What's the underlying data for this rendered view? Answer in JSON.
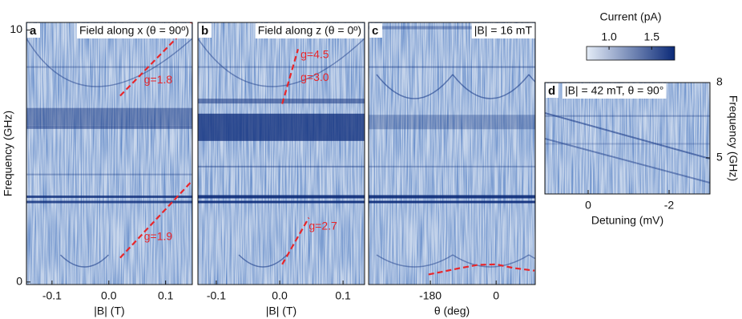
{
  "colorbar": {
    "title": "Current (pA)",
    "lim": [
      0.736,
      1.77
    ],
    "ticks": [
      {
        "value": 1.0,
        "label": "1.0"
      },
      1.5
    ],
    "colors": [
      "#e4ecf7",
      "#0b2a78"
    ]
  },
  "chart_data": [
    {
      "type": "heatmap",
      "panel": "a",
      "title": "Field along x (θ = 90º)",
      "xlabel": "|B| (T)",
      "ylabel": "Frequency (GHz)",
      "xlim": [
        -0.145,
        0.147
      ],
      "ylim": [
        -0.1,
        10.3
      ],
      "xticks": [
        -0.1,
        {
          "value": 0,
          "label": "0.0"
        },
        0.1
      ],
      "yticks": [
        0,
        10
      ],
      "fits": [
        {
          "color": "#e8262a",
          "x": [
            0.02,
            0.146
          ],
          "y": [
            7.39,
            10.3
          ]
        },
        {
          "color": "#e8262a",
          "x": [
            0.02,
            0.144
          ],
          "y": [
            0.96,
            3.95
          ]
        }
      ],
      "annotations": [
        {
          "text": "g=1.8",
          "x": 0.062,
          "y": 8.0
        },
        {
          "text": "g=1.9",
          "x": 0.062,
          "y": 1.78
        }
      ]
    },
    {
      "type": "heatmap",
      "panel": "b",
      "title": "Field along z (θ = 0º)",
      "xlabel": "|B| (T)",
      "xlim": [
        -0.129,
        0.134
      ],
      "ylim": [
        -0.1,
        10.3
      ],
      "xticks": [
        -0.1,
        {
          "value": 0,
          "label": "0.0"
        },
        0.1
      ],
      "fits": [
        {
          "color": "#e8262a",
          "x": [
            0.004,
            0.029
          ],
          "y": [
            7.07,
            9.24
          ]
        },
        {
          "color": "#e8262a",
          "x": [
            0.004,
            0.046
          ],
          "y": [
            0.7,
            2.55
          ]
        }
      ],
      "annotations": [
        {
          "text": "g=4.5",
          "x": 0.033,
          "y": 9.0
        },
        {
          "text": "g=3.0",
          "x": 0.033,
          "y": 8.1
        },
        {
          "text": "g=2.7",
          "x": 0.046,
          "y": 2.2
        }
      ]
    },
    {
      "type": "heatmap",
      "panel": "c",
      "title": "|B| = 16 mT",
      "xlabel": "θ (deg)",
      "xlim": [
        -349,
        107
      ],
      "ylim": [
        -0.1,
        10.3
      ],
      "xticks": [
        -180,
        0
      ],
      "fits": [
        {
          "color": "#e8262a",
          "x": [
            -185,
            -150,
            -100,
            -50,
            0,
            50,
            105
          ],
          "y": [
            0.3,
            0.4,
            0.55,
            0.68,
            0.7,
            0.55,
            0.45
          ]
        }
      ],
      "annotations": []
    },
    {
      "type": "heatmap",
      "panel": "d",
      "title": "|B| = 42 mT, θ = 90°",
      "xlabel": "Detuning (mV)",
      "ylabel": "Frequency (GHz)",
      "yaxis": "right",
      "xlim": [
        1.07,
        -3.01
      ],
      "ylim": [
        3.56,
        8
      ],
      "xticks": [
        0,
        -2
      ],
      "yticks": [
        5,
        8
      ],
      "fits": [],
      "annotations": []
    }
  ]
}
